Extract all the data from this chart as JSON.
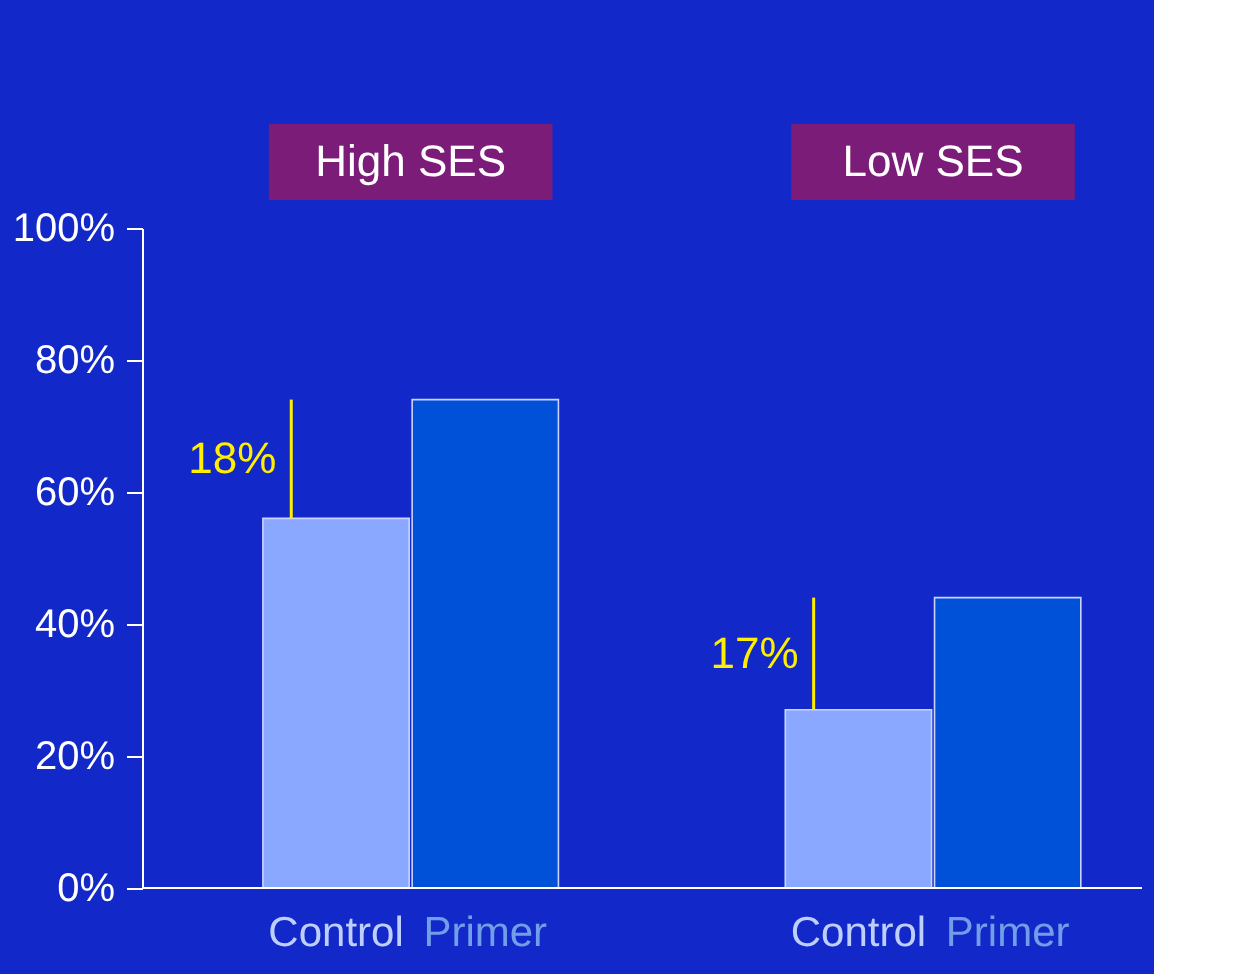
{
  "chart_data": {
    "type": "bar",
    "categories": [
      "Control",
      "Primer",
      "Control",
      "Primer"
    ],
    "values": [
      56,
      74,
      27,
      44
    ],
    "colors": [
      "#8aa8ff",
      "#0050d8",
      "#8aa8ff",
      "#0050d8"
    ],
    "ylim": [
      0,
      100
    ],
    "yticks": [
      {
        "value": 0,
        "label": "0%"
      },
      {
        "value": 20,
        "label": "20%"
      },
      {
        "value": 40,
        "label": "40%"
      },
      {
        "value": 60,
        "label": "60%"
      },
      {
        "value": 80,
        "label": "80%"
      },
      {
        "value": 100,
        "label": "100%"
      }
    ],
    "grid": false,
    "annotations": [
      "High SES",
      "Low SES",
      "18%",
      "17%"
    ]
  }
}
